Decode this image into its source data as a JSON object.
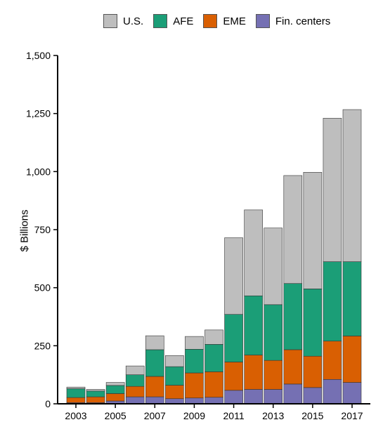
{
  "chart_data": {
    "type": "bar",
    "stacked": true,
    "categories": [
      "2003",
      "2004",
      "2005",
      "2006",
      "2007",
      "2008",
      "2009",
      "2010",
      "2011",
      "2012",
      "2013",
      "2014",
      "2015",
      "2016",
      "2017"
    ],
    "x_tick_labels": [
      "2003",
      "2005",
      "2007",
      "2009",
      "2011",
      "2013",
      "2015",
      "2017"
    ],
    "ylabel": "$ Billions",
    "xlabel": "",
    "ylim": [
      0,
      1500
    ],
    "y_ticks": [
      0,
      250,
      500,
      750,
      1000,
      1250,
      1500
    ],
    "y_tick_labels": [
      "0",
      "250",
      "500",
      "750",
      "1,000",
      "1,250",
      "1,500"
    ],
    "legend_position": "top",
    "grid": false,
    "series": [
      {
        "name": "Fin. centers",
        "color": "#7570b3",
        "values": [
          5,
          5,
          12,
          30,
          30,
          22,
          25,
          28,
          58,
          62,
          62,
          85,
          70,
          105,
          92
        ]
      },
      {
        "name": "EME",
        "color": "#d95f02",
        "values": [
          22,
          25,
          32,
          45,
          88,
          58,
          108,
          110,
          122,
          148,
          125,
          148,
          135,
          165,
          200
        ]
      },
      {
        "name": "AFE",
        "color": "#1b9e77",
        "values": [
          38,
          25,
          35,
          50,
          115,
          80,
          102,
          118,
          205,
          255,
          240,
          285,
          290,
          342,
          320
        ]
      },
      {
        "name": "U.S.",
        "color": "#bebebe",
        "values": [
          7,
          7,
          13,
          38,
          60,
          48,
          55,
          62,
          330,
          370,
          330,
          465,
          502,
          618,
          655
        ]
      }
    ],
    "legend_order": [
      "U.S.",
      "AFE",
      "EME",
      "Fin. centers"
    ]
  }
}
